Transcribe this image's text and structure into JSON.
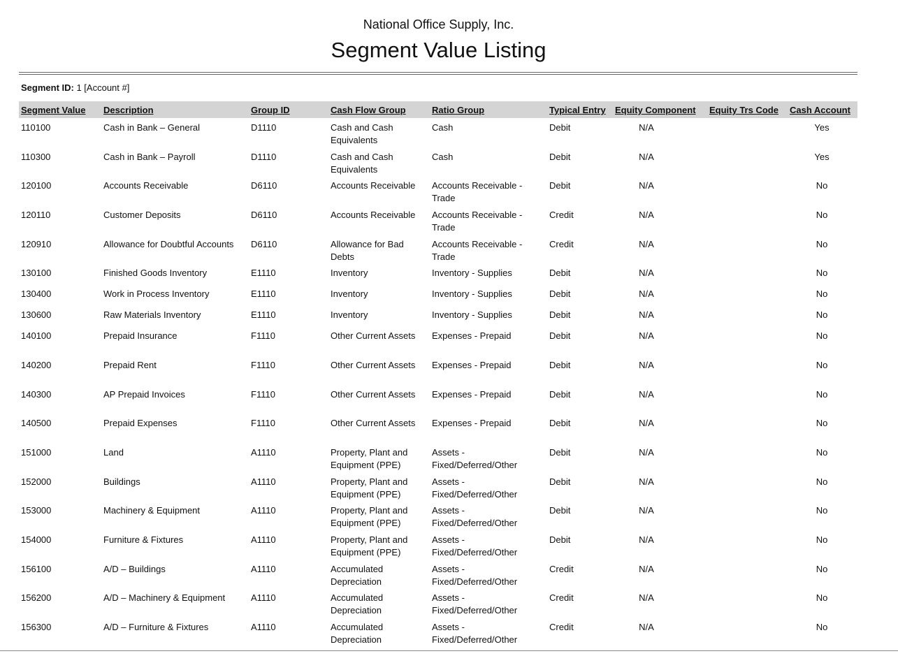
{
  "header": {
    "company": "National Office Supply, Inc.",
    "title": "Segment Value Listing"
  },
  "segment": {
    "label": "Segment ID:",
    "value": "1 [Account #]"
  },
  "table": {
    "columns": [
      "Segment Value",
      "Description",
      "Group ID",
      "Cash Flow Group",
      "Ratio Group",
      "Typical Entry",
      "Equity Component",
      "Equity Trs Code",
      "Cash Account"
    ],
    "rows": [
      [
        "110100",
        "Cash in Bank – General",
        "D1110",
        "Cash and Cash Equivalents",
        "Cash",
        "Debit",
        "N/A",
        null,
        "Yes"
      ],
      [
        "110300",
        "Cash in Bank – Payroll",
        "D1110",
        "Cash and Cash Equivalents",
        "Cash",
        "Debit",
        "N/A",
        null,
        "Yes"
      ],
      [
        "120100",
        "Accounts Receivable",
        "D6110",
        "Accounts Receivable",
        "Accounts Receivable - Trade",
        "Debit",
        "N/A",
        null,
        "No"
      ],
      [
        "120110",
        "Customer Deposits",
        "D6110",
        "Accounts Receivable",
        "Accounts Receivable - Trade",
        "Credit",
        "N/A",
        null,
        "No"
      ],
      [
        "120910",
        "Allowance for Doubtful Accounts",
        "D6110",
        "Allowance for Bad Debts",
        "Accounts Receivable - Trade",
        "Credit",
        "N/A",
        null,
        "No"
      ],
      [
        "130100",
        "Finished Goods Inventory",
        "E1110",
        "Inventory",
        "Inventory - Supplies",
        "Debit",
        "N/A",
        null,
        "No"
      ],
      [
        "130400",
        "Work in Process Inventory",
        "E1110",
        "Inventory",
        "Inventory - Supplies",
        "Debit",
        "N/A",
        null,
        "No"
      ],
      [
        "130600",
        "Raw Materials Inventory",
        "E1110",
        "Inventory",
        "Inventory - Supplies",
        "Debit",
        "N/A",
        null,
        "No"
      ],
      [
        "140100",
        "Prepaid Insurance",
        "F1110",
        "Other Current Assets",
        "Expenses - Prepaid",
        "Debit",
        "N/A",
        null,
        "No"
      ],
      [
        "140200",
        "Prepaid Rent",
        "F1110",
        "Other Current Assets",
        "Expenses - Prepaid",
        "Debit",
        "N/A",
        null,
        "No"
      ],
      [
        "140300",
        "AP Prepaid Invoices",
        "F1110",
        "Other Current Assets",
        "Expenses - Prepaid",
        "Debit",
        "N/A",
        null,
        "No"
      ],
      [
        "140500",
        "Prepaid Expenses",
        "F1110",
        "Other Current Assets",
        "Expenses - Prepaid",
        "Debit",
        "N/A",
        null,
        "No"
      ],
      [
        "151000",
        "Land",
        "A1110",
        "Property, Plant and Equipment (PPE)",
        "Assets - Fixed/Deferred/Other",
        "Debit",
        "N/A",
        null,
        "No"
      ],
      [
        "152000",
        "Buildings",
        "A1110",
        "Property, Plant and Equipment (PPE)",
        "Assets - Fixed/Deferred/Other",
        "Debit",
        "N/A",
        null,
        "No"
      ],
      [
        "153000",
        "Machinery & Equipment",
        "A1110",
        "Property, Plant and Equipment (PPE)",
        "Assets - Fixed/Deferred/Other",
        "Debit",
        "N/A",
        null,
        "No"
      ],
      [
        "154000",
        "Furniture & Fixtures",
        "A1110",
        "Property, Plant and Equipment (PPE)",
        "Assets - Fixed/Deferred/Other",
        "Debit",
        "N/A",
        null,
        "No"
      ],
      [
        "156100",
        "A/D – Buildings",
        "A1110",
        "Accumulated Depreciation",
        "Assets - Fixed/Deferred/Other",
        "Credit",
        "N/A",
        null,
        "No"
      ],
      [
        "156200",
        "A/D – Machinery & Equipment",
        "A1110",
        "Accumulated Depreciation",
        "Assets - Fixed/Deferred/Other",
        "Credit",
        "N/A",
        null,
        "No"
      ],
      [
        "156300",
        "A/D – Furniture & Fixtures",
        "A1110",
        "Accumulated Depreciation",
        "Assets - Fixed/Deferred/Other",
        "Credit",
        "N/A",
        null,
        "No"
      ]
    ]
  }
}
